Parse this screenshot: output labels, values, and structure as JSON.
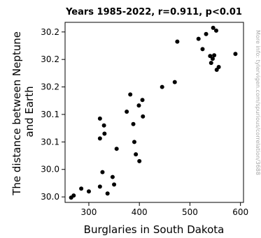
{
  "chart_data": {
    "type": "scatter",
    "title": "Years 1985-2022, r=0.911, p<0.01",
    "xlabel": "Burglaries in South Dakota",
    "ylabel": "The distance between Neptune and Earth",
    "side_note": "More info: tylervigen.com/spurious/correlation/3688",
    "xlim": [
      253,
      606
    ],
    "ylim": [
      29.992,
      30.254
    ],
    "xticks": [
      300,
      400,
      500,
      600
    ],
    "yticks": [
      30.0,
      30.04,
      30.08,
      30.12,
      30.16,
      30.2,
      30.24
    ],
    "ytick_labels": [
      "30.0",
      "30.0",
      "30.1",
      "30.1",
      "30.2",
      "30.2",
      "30.2"
    ],
    "grid": false,
    "legend": "none",
    "marker_color": "#000000",
    "points": [
      {
        "x": 265,
        "y": 29.999
      },
      {
        "x": 270,
        "y": 30.002
      },
      {
        "x": 285,
        "y": 30.012
      },
      {
        "x": 300,
        "y": 30.008
      },
      {
        "x": 322,
        "y": 30.015
      },
      {
        "x": 327,
        "y": 30.036
      },
      {
        "x": 337,
        "y": 30.005
      },
      {
        "x": 347,
        "y": 30.029
      },
      {
        "x": 350,
        "y": 30.018
      },
      {
        "x": 322,
        "y": 30.085
      },
      {
        "x": 322,
        "y": 30.114
      },
      {
        "x": 330,
        "y": 30.104
      },
      {
        "x": 331,
        "y": 30.092
      },
      {
        "x": 355,
        "y": 30.07
      },
      {
        "x": 375,
        "y": 30.124
      },
      {
        "x": 382,
        "y": 30.149
      },
      {
        "x": 388,
        "y": 30.106
      },
      {
        "x": 390,
        "y": 30.08
      },
      {
        "x": 393,
        "y": 30.062
      },
      {
        "x": 399,
        "y": 30.133
      },
      {
        "x": 400,
        "y": 30.052
      },
      {
        "x": 406,
        "y": 30.141
      },
      {
        "x": 407,
        "y": 30.117
      },
      {
        "x": 445,
        "y": 30.16
      },
      {
        "x": 470,
        "y": 30.167
      },
      {
        "x": 475,
        "y": 30.226
      },
      {
        "x": 517,
        "y": 30.23
      },
      {
        "x": 525,
        "y": 30.215
      },
      {
        "x": 532,
        "y": 30.237
      },
      {
        "x": 540,
        "y": 30.205
      },
      {
        "x": 542,
        "y": 30.195
      },
      {
        "x": 545,
        "y": 30.201
      },
      {
        "x": 548,
        "y": 30.206
      },
      {
        "x": 546,
        "y": 30.246
      },
      {
        "x": 552,
        "y": 30.242
      },
      {
        "x": 553,
        "y": 30.185
      },
      {
        "x": 557,
        "y": 30.189
      },
      {
        "x": 590,
        "y": 30.208
      }
    ]
  }
}
